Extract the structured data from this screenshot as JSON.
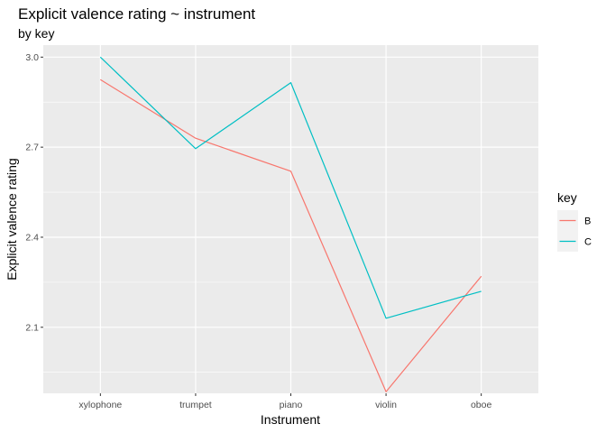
{
  "chart_data": {
    "type": "line",
    "title": "Explicit valence rating ~ instrument",
    "subtitle": "by key",
    "xlabel": "Instrument",
    "ylabel": "Explicit valence rating",
    "categories": [
      "xylophone",
      "trumpet",
      "piano",
      "violin",
      "oboe"
    ],
    "yticks": [
      2.1,
      2.4,
      2.7,
      3.0
    ],
    "ytick_labels": [
      "2.1",
      "2.4",
      "2.7",
      "3.0"
    ],
    "ylim": [
      1.88,
      3.04
    ],
    "grid": true,
    "legend": {
      "title": "key",
      "placement": "right"
    },
    "series": [
      {
        "name": "B",
        "color": "#F8766D",
        "values": [
          2.925,
          2.73,
          2.62,
          1.885,
          2.27
        ]
      },
      {
        "name": "C",
        "color": "#00BFC4",
        "values": [
          3.0,
          2.695,
          2.915,
          2.13,
          2.22
        ]
      }
    ]
  }
}
